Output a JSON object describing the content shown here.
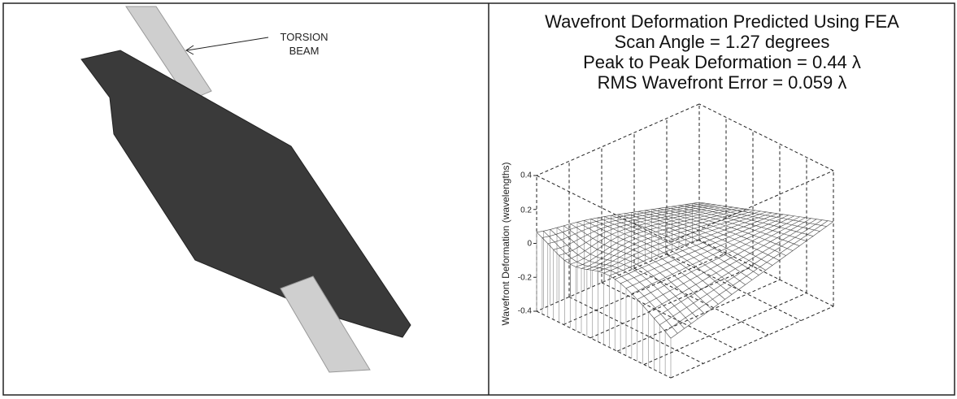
{
  "left_panel": {
    "annotation": [
      "TORSION",
      "BEAM"
    ]
  },
  "right_panel": {
    "title_lines": [
      "Wavefront Deformation Predicted Using FEA",
      "Scan Angle = 1.27 degrees",
      "Peak to Peak Deformation = 0.44 λ",
      "RMS Wavefront Error = 0.059 λ"
    ],
    "z_axis": {
      "label": "Wavefront Deformation (wavelengths)",
      "ticks": [
        0.4,
        0.2,
        0,
        -0.2,
        -0.4
      ]
    }
  }
}
